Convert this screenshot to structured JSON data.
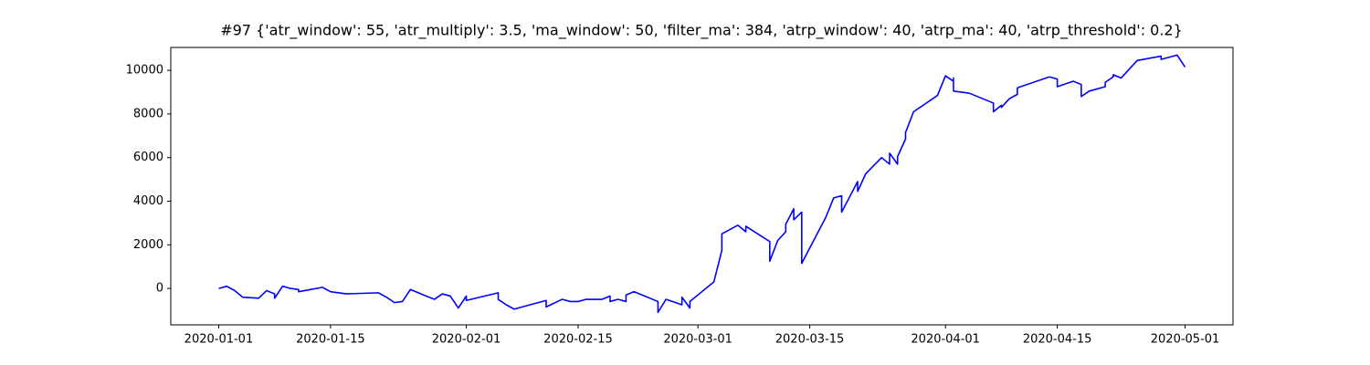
{
  "chart_data": {
    "type": "line",
    "title": "#97 {'atr_window': 55, 'atr_multiply': 3.5, 'ma_window': 50, 'filter_ma': 384, 'atrp_window': 40, 'atrp_ma': 40, 'atrp_threshold': 0.2}",
    "x": [
      "2020-01-01",
      "2020-01-02",
      "2020-01-03",
      "2020-01-04",
      "2020-01-06",
      "2020-01-07",
      "2020-01-08",
      "2020-01-08",
      "2020-01-09",
      "2020-01-10",
      "2020-01-11",
      "2020-01-11",
      "2020-01-14",
      "2020-01-15",
      "2020-01-17",
      "2020-01-21",
      "2020-01-22",
      "2020-01-23",
      "2020-01-24",
      "2020-01-25",
      "2020-01-27",
      "2020-01-28",
      "2020-01-29",
      "2020-01-30",
      "2020-01-31",
      "2020-02-01",
      "2020-02-01",
      "2020-02-05",
      "2020-02-05",
      "2020-02-06",
      "2020-02-07",
      "2020-02-11",
      "2020-02-11",
      "2020-02-13",
      "2020-02-14",
      "2020-02-15",
      "2020-02-16",
      "2020-02-18",
      "2020-02-19",
      "2020-02-19",
      "2020-02-20",
      "2020-02-21",
      "2020-02-21",
      "2020-02-22",
      "2020-02-25",
      "2020-02-25",
      "2020-02-26",
      "2020-02-28",
      "2020-02-28",
      "2020-02-29",
      "2020-02-29",
      "2020-03-03",
      "2020-03-04",
      "2020-03-04",
      "2020-03-06",
      "2020-03-07",
      "2020-03-07",
      "2020-03-10",
      "2020-03-10",
      "2020-03-11",
      "2020-03-12",
      "2020-03-12",
      "2020-03-13",
      "2020-03-13",
      "2020-03-14",
      "2020-03-14",
      "2020-03-14",
      "2020-03-17",
      "2020-03-18",
      "2020-03-19",
      "2020-03-19",
      "2020-03-21",
      "2020-03-21",
      "2020-03-22",
      "2020-03-24",
      "2020-03-25",
      "2020-03-25",
      "2020-03-26",
      "2020-03-26",
      "2020-03-27",
      "2020-03-27",
      "2020-03-28",
      "2020-03-31",
      "2020-04-01",
      "2020-04-02",
      "2020-04-02",
      "2020-04-02",
      "2020-04-04",
      "2020-04-07",
      "2020-04-07",
      "2020-04-08",
      "2020-04-08",
      "2020-04-09",
      "2020-04-10",
      "2020-04-10",
      "2020-04-14",
      "2020-04-15",
      "2020-04-15",
      "2020-04-17",
      "2020-04-18",
      "2020-04-18",
      "2020-04-19",
      "2020-04-21",
      "2020-04-21",
      "2020-04-22",
      "2020-04-22",
      "2020-04-23",
      "2020-04-25",
      "2020-04-28",
      "2020-04-28",
      "2020-04-30",
      "2020-05-01"
    ],
    "values": [
      0,
      100,
      -100,
      -400,
      -450,
      -100,
      -250,
      -450,
      100,
      0,
      -50,
      -150,
      50,
      -150,
      -250,
      -200,
      -400,
      -650,
      -600,
      -50,
      -350,
      -500,
      -250,
      -350,
      -900,
      -350,
      -550,
      -200,
      -500,
      -750,
      -950,
      -550,
      -850,
      -500,
      -600,
      -600,
      -500,
      -500,
      -350,
      -600,
      -500,
      -600,
      -300,
      -150,
      -600,
      -1100,
      -500,
      -750,
      -400,
      -900,
      -600,
      300,
      1750,
      2500,
      2900,
      2600,
      2850,
      2150,
      1250,
      2200,
      2600,
      2950,
      3650,
      3150,
      3500,
      2800,
      1150,
      3250,
      4150,
      4250,
      3500,
      4900,
      4450,
      5250,
      6000,
      5700,
      6200,
      5700,
      6050,
      6850,
      7150,
      8100,
      8850,
      9750,
      9500,
      9650,
      9050,
      8950,
      8500,
      8100,
      8400,
      8300,
      8700,
      8900,
      9200,
      9700,
      9600,
      9250,
      9500,
      9350,
      8800,
      9050,
      9250,
      9450,
      9700,
      9800,
      9650,
      10450,
      10650,
      10500,
      10700,
      10150
    ],
    "color": "#0000ff",
    "xlim": [
      "2019-12-26",
      "2020-05-07"
    ],
    "xticks": [
      "2020-01-01",
      "2020-01-15",
      "2020-02-01",
      "2020-02-15",
      "2020-03-01",
      "2020-03-15",
      "2020-04-01",
      "2020-04-15",
      "2020-05-01"
    ],
    "ylim": [
      -1670,
      11050
    ],
    "yticks": [
      0,
      2000,
      4000,
      6000,
      8000,
      10000
    ]
  }
}
